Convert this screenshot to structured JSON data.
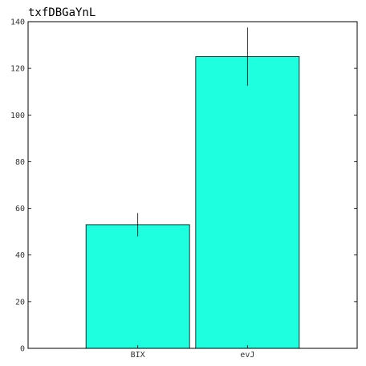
{
  "chart_data": {
    "type": "bar",
    "title": "txfDBGaYnL",
    "xlabel": "",
    "ylabel": "",
    "categories": [
      "BIX",
      "evJ"
    ],
    "values": [
      53,
      125
    ],
    "errors": [
      5,
      12.5
    ],
    "ylim": [
      0,
      140
    ],
    "yticks": [
      0,
      20,
      40,
      60,
      80,
      100,
      120,
      140
    ],
    "bar_color": "#1effdf",
    "grid": false,
    "legend": "none"
  }
}
